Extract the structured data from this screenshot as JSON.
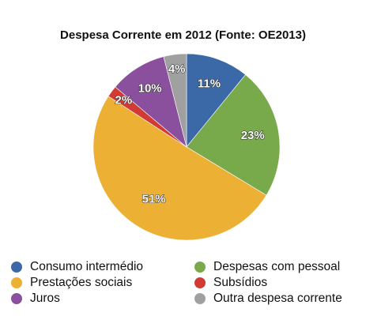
{
  "chart_data": {
    "type": "pie",
    "title": "Despesa Corrente em 2012 (Fonte: OE2013)",
    "legend_position": "bottom",
    "slices": [
      {
        "name": "Consumo intermédio",
        "value": 11,
        "label": "11%",
        "color": "#3b69a8"
      },
      {
        "name": "Despesas com pessoal",
        "value": 23,
        "label": "23%",
        "color": "#78a94b"
      },
      {
        "name": "Prestações sociais",
        "value": 51,
        "label": "51%",
        "color": "#ebb034"
      },
      {
        "name": "Subsídios",
        "value": 2,
        "label": "2%",
        "color": "#d23b34"
      },
      {
        "name": "Juros",
        "value": 10,
        "label": "10%",
        "color": "#8a4f9d"
      },
      {
        "name": "Outra despesa corrente",
        "value": 4,
        "label": "4%",
        "color": "#a0a0a0"
      }
    ],
    "legend": [
      {
        "name": "Consumo intermédio",
        "color": "#3b69a8"
      },
      {
        "name": "Despesas com pessoal",
        "color": "#78a94b"
      },
      {
        "name": "Prestações sociais",
        "color": "#ebb034"
      },
      {
        "name": "Subsídios",
        "color": "#d23b34"
      },
      {
        "name": "Juros",
        "color": "#8a4f9d"
      },
      {
        "name": "Outra despesa corrente",
        "color": "#a0a0a0"
      }
    ]
  }
}
